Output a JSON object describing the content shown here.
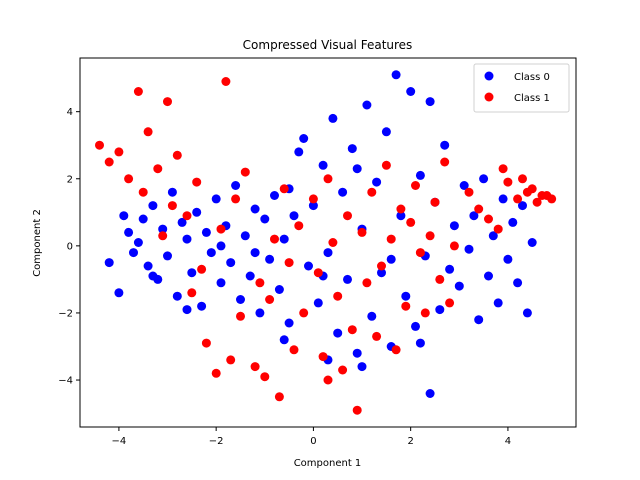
{
  "chart_data": {
    "type": "scatter",
    "title": "Compressed Visual Features",
    "xlabel": "Component 1",
    "ylabel": "Component 2",
    "xlim": [
      -4.8,
      5.4
    ],
    "ylim": [
      -5.4,
      5.6
    ],
    "xticks": [
      -4,
      -2,
      0,
      2,
      4
    ],
    "yticks": [
      -4,
      -2,
      0,
      2,
      4
    ],
    "grid": false,
    "legend_position": "top-right",
    "series": [
      {
        "name": "Class 0",
        "color": "#0000ff",
        "points": [
          [
            -4.2,
            -0.5
          ],
          [
            -4.0,
            -1.4
          ],
          [
            -3.9,
            0.9
          ],
          [
            -3.8,
            0.4
          ],
          [
            -3.7,
            -0.2
          ],
          [
            -3.6,
            0.1
          ],
          [
            -3.5,
            0.8
          ],
          [
            -3.4,
            -0.6
          ],
          [
            -3.3,
            1.2
          ],
          [
            -3.2,
            -1.0
          ],
          [
            -3.1,
            0.5
          ],
          [
            -3.0,
            -0.3
          ],
          [
            -2.9,
            1.6
          ],
          [
            -2.8,
            -1.5
          ],
          [
            -2.7,
            0.7
          ],
          [
            -2.6,
            0.2
          ],
          [
            -2.5,
            -0.8
          ],
          [
            -2.4,
            1.0
          ],
          [
            -2.3,
            -1.8
          ],
          [
            -2.2,
            0.4
          ],
          [
            -2.1,
            -0.2
          ],
          [
            -2.0,
            1.4
          ],
          [
            -1.9,
            -1.1
          ],
          [
            -1.8,
            0.6
          ],
          [
            -1.7,
            -0.5
          ],
          [
            -1.6,
            1.8
          ],
          [
            -1.5,
            -1.6
          ],
          [
            -1.4,
            0.3
          ],
          [
            -1.3,
            -0.9
          ],
          [
            -1.2,
            1.1
          ],
          [
            -1.1,
            -2.0
          ],
          [
            -1.0,
            0.8
          ],
          [
            -0.9,
            -0.4
          ],
          [
            -0.8,
            1.5
          ],
          [
            -0.7,
            -1.3
          ],
          [
            -0.6,
            0.2
          ],
          [
            -0.5,
            -2.3
          ],
          [
            -0.4,
            0.9
          ],
          [
            -0.3,
            2.8
          ],
          [
            -0.2,
            3.2
          ],
          [
            -0.1,
            -0.6
          ],
          [
            0.0,
            1.2
          ],
          [
            0.1,
            -1.7
          ],
          [
            0.2,
            2.4
          ],
          [
            0.3,
            -0.2
          ],
          [
            0.4,
            3.8
          ],
          [
            0.5,
            -2.6
          ],
          [
            0.6,
            1.6
          ],
          [
            0.7,
            -1.0
          ],
          [
            0.8,
            2.9
          ],
          [
            0.9,
            -3.2
          ],
          [
            1.0,
            0.5
          ],
          [
            1.1,
            4.2
          ],
          [
            1.2,
            -2.1
          ],
          [
            1.3,
            1.9
          ],
          [
            1.4,
            -0.8
          ],
          [
            1.5,
            3.4
          ],
          [
            1.6,
            -3.0
          ],
          [
            1.7,
            5.1
          ],
          [
            1.8,
            0.9
          ],
          [
            1.9,
            -1.5
          ],
          [
            2.0,
            4.6
          ],
          [
            2.1,
            -2.4
          ],
          [
            2.2,
            2.1
          ],
          [
            2.3,
            -0.3
          ],
          [
            2.4,
            4.3
          ],
          [
            2.4,
            -4.4
          ],
          [
            2.5,
            1.3
          ],
          [
            2.6,
            -1.9
          ],
          [
            2.7,
            3.0
          ],
          [
            2.8,
            -0.7
          ],
          [
            2.9,
            0.6
          ],
          [
            3.0,
            -1.2
          ],
          [
            3.1,
            1.8
          ],
          [
            3.2,
            -0.1
          ],
          [
            3.3,
            0.9
          ],
          [
            3.4,
            -2.2
          ],
          [
            3.5,
            2.0
          ],
          [
            3.6,
            -0.9
          ],
          [
            3.7,
            0.3
          ],
          [
            3.8,
            -1.7
          ],
          [
            3.9,
            1.4
          ],
          [
            4.0,
            -0.4
          ],
          [
            4.1,
            0.7
          ],
          [
            4.2,
            -1.1
          ],
          [
            4.3,
            1.2
          ],
          [
            4.4,
            -2.0
          ],
          [
            4.5,
            0.1
          ],
          [
            -3.3,
            -0.9
          ],
          [
            -2.6,
            -1.9
          ],
          [
            -1.9,
            0.0
          ],
          [
            -1.2,
            -0.2
          ],
          [
            -0.5,
            1.7
          ],
          [
            0.2,
            -0.9
          ],
          [
            0.9,
            2.3
          ],
          [
            1.6,
            -0.4
          ],
          [
            2.2,
            -2.9
          ],
          [
            1.0,
            -3.6
          ],
          [
            0.3,
            -3.4
          ],
          [
            -0.6,
            -2.8
          ]
        ]
      },
      {
        "name": "Class 1",
        "color": "#ff0000",
        "points": [
          [
            -4.4,
            3.0
          ],
          [
            -4.2,
            2.5
          ],
          [
            -4.0,
            2.8
          ],
          [
            -3.8,
            2.0
          ],
          [
            -3.6,
            4.6
          ],
          [
            -3.5,
            1.6
          ],
          [
            -3.4,
            3.4
          ],
          [
            -3.2,
            2.3
          ],
          [
            -3.0,
            4.3
          ],
          [
            -2.9,
            1.2
          ],
          [
            -2.8,
            2.7
          ],
          [
            -2.6,
            0.9
          ],
          [
            -2.4,
            1.9
          ],
          [
            -2.3,
            -0.7
          ],
          [
            -2.2,
            -2.9
          ],
          [
            -2.0,
            -3.8
          ],
          [
            -1.9,
            0.5
          ],
          [
            -1.8,
            4.9
          ],
          [
            -1.7,
            -3.4
          ],
          [
            -1.6,
            1.4
          ],
          [
            -1.5,
            -2.1
          ],
          [
            -1.4,
            2.2
          ],
          [
            -1.2,
            -3.6
          ],
          [
            -1.0,
            -3.9
          ],
          [
            -0.9,
            -1.6
          ],
          [
            -0.8,
            0.2
          ],
          [
            -0.7,
            -4.5
          ],
          [
            -0.6,
            1.7
          ],
          [
            -0.5,
            -0.5
          ],
          [
            -0.4,
            -3.1
          ],
          [
            -0.3,
            0.6
          ],
          [
            -0.2,
            -2.0
          ],
          [
            0.0,
            1.4
          ],
          [
            0.1,
            -0.8
          ],
          [
            0.2,
            -3.3
          ],
          [
            0.3,
            2.0
          ],
          [
            0.4,
            0.1
          ],
          [
            0.5,
            -1.5
          ],
          [
            0.6,
            -3.7
          ],
          [
            0.7,
            0.9
          ],
          [
            0.8,
            -2.5
          ],
          [
            0.9,
            -4.9
          ],
          [
            1.0,
            0.4
          ],
          [
            1.1,
            -1.1
          ],
          [
            1.2,
            1.6
          ],
          [
            1.3,
            -2.7
          ],
          [
            1.4,
            -0.6
          ],
          [
            1.5,
            2.4
          ],
          [
            1.6,
            0.2
          ],
          [
            1.7,
            -3.1
          ],
          [
            1.8,
            1.1
          ],
          [
            1.9,
            -1.8
          ],
          [
            2.0,
            0.7
          ],
          [
            2.1,
            1.8
          ],
          [
            2.2,
            -0.2
          ],
          [
            2.3,
            -2.0
          ],
          [
            2.4,
            0.3
          ],
          [
            2.5,
            1.3
          ],
          [
            2.6,
            -1.0
          ],
          [
            2.7,
            2.5
          ],
          [
            2.8,
            -1.7
          ],
          [
            2.9,
            0.0
          ],
          [
            3.2,
            1.6
          ],
          [
            3.4,
            1.1
          ],
          [
            3.6,
            0.8
          ],
          [
            3.8,
            0.5
          ],
          [
            3.9,
            2.3
          ],
          [
            4.0,
            1.9
          ],
          [
            4.2,
            1.4
          ],
          [
            4.3,
            2.0
          ],
          [
            4.4,
            1.6
          ],
          [
            4.5,
            1.7
          ],
          [
            4.6,
            1.3
          ],
          [
            4.7,
            1.5
          ],
          [
            4.8,
            1.5
          ],
          [
            4.9,
            1.4
          ],
          [
            -3.1,
            0.3
          ],
          [
            -2.5,
            -1.4
          ],
          [
            -1.1,
            -1.1
          ],
          [
            0.3,
            -4.0
          ]
        ]
      }
    ]
  }
}
